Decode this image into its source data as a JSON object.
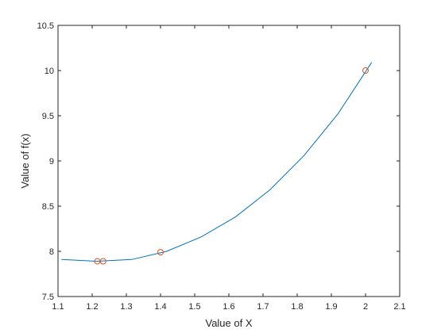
{
  "chart_data": {
    "type": "line",
    "xlabel": "Value of X",
    "ylabel": "Value of f(x)",
    "xlim": [
      1.1,
      2.1
    ],
    "ylim": [
      7.5,
      10.5
    ],
    "x_ticks": [
      1.1,
      1.2,
      1.3,
      1.4,
      1.5,
      1.6,
      1.7,
      1.8,
      1.9,
      2.0,
      2.1
    ],
    "x_tick_labels": [
      "1.1",
      "1.2",
      "1.3",
      "1.4",
      "1.5",
      "1.6",
      "1.7",
      "1.8",
      "1.9",
      "2",
      "2.1"
    ],
    "y_ticks": [
      7.5,
      8.0,
      8.5,
      9.0,
      9.5,
      10.0,
      10.5
    ],
    "y_tick_labels": [
      "7.5",
      "8",
      "8.5",
      "9",
      "9.5",
      "10",
      "10.5"
    ],
    "grid": false,
    "series": [
      {
        "type": "line",
        "color": "#0072bd",
        "x": [
          1.11,
          1.213,
          1.316,
          1.418,
          1.519,
          1.619,
          1.72,
          1.82,
          1.919,
          2.018
        ],
        "y": [
          7.91,
          7.89,
          7.91,
          8.0,
          8.16,
          8.38,
          8.68,
          9.06,
          9.52,
          10.09
        ]
      },
      {
        "type": "scatter",
        "marker": "circle-open",
        "color": "#d95319",
        "x": [
          1.215,
          1.232,
          1.4,
          2.0
        ],
        "y": [
          7.89,
          7.89,
          7.99,
          10.0
        ]
      }
    ]
  }
}
